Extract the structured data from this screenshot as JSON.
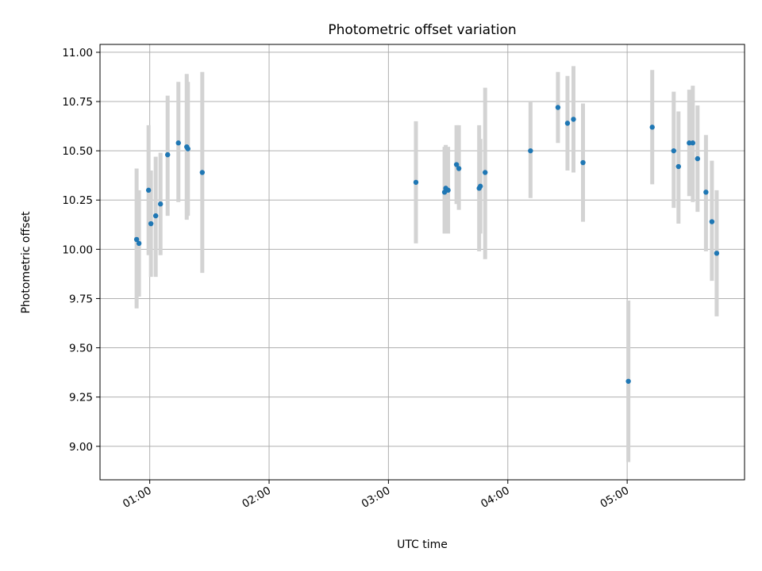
{
  "chart_data": {
    "type": "scatter",
    "title": "Photometric offset variation",
    "xlabel": "UTC time",
    "ylabel": "Photometric offset",
    "x_unit": "UTC time (HH:MM)",
    "xlim": [
      "00:35",
      "05:59"
    ],
    "ylim": [
      8.83,
      11.04
    ],
    "x_ticks": [
      "01:00",
      "02:00",
      "03:00",
      "04:00",
      "05:00"
    ],
    "y_ticks": [
      "9.00",
      "9.25",
      "9.50",
      "9.75",
      "10.00",
      "10.25",
      "10.50",
      "10.75",
      "11.00"
    ],
    "grid": true,
    "marker_color": "#1f77b4",
    "errorbar_color": "#d3d3d3",
    "points": [
      {
        "x": "00:53:24",
        "y": 10.05,
        "err_low": 9.7,
        "err_high": 10.41
      },
      {
        "x": "00:54:36",
        "y": 10.03,
        "err_low": 9.76,
        "err_high": 10.3
      },
      {
        "x": "00:59:24",
        "y": 10.3,
        "err_low": 9.97,
        "err_high": 10.63
      },
      {
        "x": "01:00:36",
        "y": 10.13,
        "err_low": 9.86,
        "err_high": 10.4
      },
      {
        "x": "01:03:00",
        "y": 10.17,
        "err_low": 9.86,
        "err_high": 10.47
      },
      {
        "x": "01:05:24",
        "y": 10.23,
        "err_low": 9.97,
        "err_high": 10.49
      },
      {
        "x": "01:09:00",
        "y": 10.48,
        "err_low": 10.17,
        "err_high": 10.78
      },
      {
        "x": "01:14:24",
        "y": 10.54,
        "err_low": 10.24,
        "err_high": 10.85
      },
      {
        "x": "01:18:36",
        "y": 10.52,
        "err_low": 10.15,
        "err_high": 10.89
      },
      {
        "x": "01:19:12",
        "y": 10.51,
        "err_low": 10.17,
        "err_high": 10.85
      },
      {
        "x": "01:26:24",
        "y": 10.39,
        "err_low": 9.88,
        "err_high": 10.9
      },
      {
        "x": "03:13:48",
        "y": 10.34,
        "err_low": 10.03,
        "err_high": 10.65
      },
      {
        "x": "03:28:12",
        "y": 10.29,
        "err_low": 10.08,
        "err_high": 10.52
      },
      {
        "x": "03:28:48",
        "y": 10.31,
        "err_low": 10.08,
        "err_high": 10.53
      },
      {
        "x": "03:30:00",
        "y": 10.3,
        "err_low": 10.08,
        "err_high": 10.52
      },
      {
        "x": "03:34:12",
        "y": 10.43,
        "err_low": 10.23,
        "err_high": 10.63
      },
      {
        "x": "03:35:24",
        "y": 10.41,
        "err_low": 10.2,
        "err_high": 10.63
      },
      {
        "x": "03:45:36",
        "y": 10.31,
        "err_low": 9.99,
        "err_high": 10.63
      },
      {
        "x": "03:46:12",
        "y": 10.32,
        "err_low": 10.08,
        "err_high": 10.56
      },
      {
        "x": "03:48:36",
        "y": 10.39,
        "err_low": 9.95,
        "err_high": 10.82
      },
      {
        "x": "04:11:24",
        "y": 10.5,
        "err_low": 10.26,
        "err_high": 10.75
      },
      {
        "x": "04:25:12",
        "y": 10.72,
        "err_low": 10.54,
        "err_high": 10.9
      },
      {
        "x": "04:30:00",
        "y": 10.64,
        "err_low": 10.4,
        "err_high": 10.88
      },
      {
        "x": "04:33:00",
        "y": 10.66,
        "err_low": 10.39,
        "err_high": 10.93
      },
      {
        "x": "04:37:48",
        "y": 10.44,
        "err_low": 10.14,
        "err_high": 10.74
      },
      {
        "x": "05:00:36",
        "y": 9.33,
        "err_low": 8.92,
        "err_high": 9.74
      },
      {
        "x": "05:12:36",
        "y": 10.62,
        "err_low": 10.33,
        "err_high": 10.91
      },
      {
        "x": "05:23:24",
        "y": 10.5,
        "err_low": 10.21,
        "err_high": 10.8
      },
      {
        "x": "05:25:48",
        "y": 10.42,
        "err_low": 10.13,
        "err_high": 10.7
      },
      {
        "x": "05:31:12",
        "y": 10.54,
        "err_low": 10.27,
        "err_high": 10.81
      },
      {
        "x": "05:33:00",
        "y": 10.54,
        "err_low": 10.24,
        "err_high": 10.83
      },
      {
        "x": "05:35:24",
        "y": 10.46,
        "err_low": 10.19,
        "err_high": 10.73
      },
      {
        "x": "05:39:36",
        "y": 10.29,
        "err_low": 9.99,
        "err_high": 10.58
      },
      {
        "x": "05:42:36",
        "y": 10.14,
        "err_low": 9.84,
        "err_high": 10.45
      },
      {
        "x": "05:45:00",
        "y": 9.98,
        "err_low": 9.66,
        "err_high": 10.3
      }
    ]
  }
}
